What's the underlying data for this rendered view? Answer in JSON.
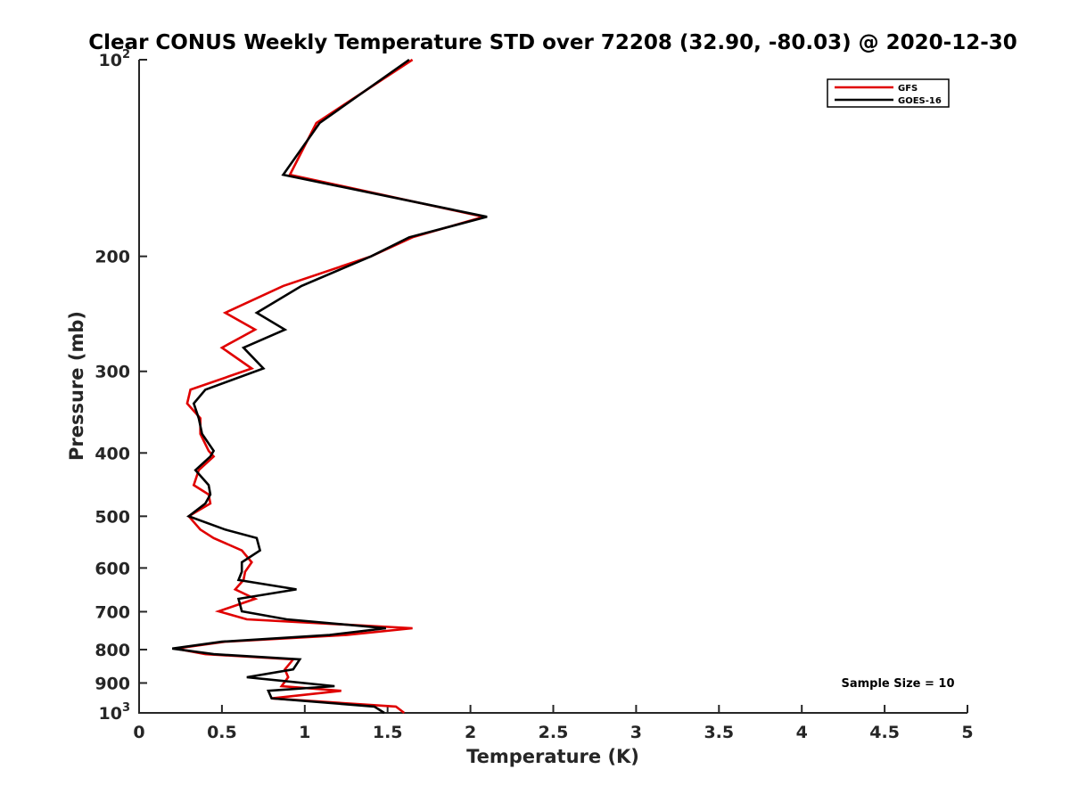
{
  "chart_data": {
    "type": "line",
    "title": "Clear CONUS Weekly Temperature STD over 72208 (32.90, -80.03) @ 2020-12-30",
    "xlabel": "Temperature (K)",
    "ylabel": "Pressure (mb)",
    "xlim": [
      0,
      5
    ],
    "ylim": [
      100,
      1000
    ],
    "yscale": "log",
    "yreversed": true,
    "grid": false,
    "legend_position": "top-right",
    "x_ticks": [
      {
        "value": 0,
        "label": "0"
      },
      {
        "value": 0.5,
        "label": "0.5"
      },
      {
        "value": 1,
        "label": "1"
      },
      {
        "value": 1.5,
        "label": "1.5"
      },
      {
        "value": 2,
        "label": "2"
      },
      {
        "value": 2.5,
        "label": "2.5"
      },
      {
        "value": 3,
        "label": "3"
      },
      {
        "value": 3.5,
        "label": "3.5"
      },
      {
        "value": 4,
        "label": "4"
      },
      {
        "value": 4.5,
        "label": "4.5"
      },
      {
        "value": 5,
        "label": "5"
      }
    ],
    "y_ticks": [
      {
        "value": 100,
        "label": "10",
        "sup": "2"
      },
      {
        "value": 200,
        "label": "200",
        "sup": ""
      },
      {
        "value": 300,
        "label": "300",
        "sup": ""
      },
      {
        "value": 400,
        "label": "400",
        "sup": ""
      },
      {
        "value": 500,
        "label": "500",
        "sup": ""
      },
      {
        "value": 600,
        "label": "600",
        "sup": ""
      },
      {
        "value": 700,
        "label": "700",
        "sup": ""
      },
      {
        "value": 800,
        "label": "800",
        "sup": ""
      },
      {
        "value": 900,
        "label": "900",
        "sup": ""
      },
      {
        "value": 1000,
        "label": "10",
        "sup": "3"
      }
    ],
    "annotation": "Sample Size = 10",
    "series": [
      {
        "name": "GFS",
        "color": "#e00000",
        "points": [
          [
            1.65,
            100
          ],
          [
            1.07,
            125
          ],
          [
            0.91,
            150
          ],
          [
            2.08,
            174
          ],
          [
            1.65,
            187
          ],
          [
            1.4,
            200
          ],
          [
            0.87,
            222
          ],
          [
            0.52,
            244
          ],
          [
            0.7,
            259
          ],
          [
            0.5,
            276
          ],
          [
            0.68,
            297
          ],
          [
            0.31,
            320
          ],
          [
            0.29,
            336
          ],
          [
            0.37,
            354
          ],
          [
            0.37,
            374
          ],
          [
            0.42,
            397
          ],
          [
            0.45,
            405
          ],
          [
            0.36,
            425
          ],
          [
            0.33,
            448
          ],
          [
            0.42,
            463
          ],
          [
            0.43,
            478
          ],
          [
            0.3,
            500
          ],
          [
            0.37,
            524
          ],
          [
            0.45,
            540
          ],
          [
            0.62,
            564
          ],
          [
            0.68,
            588
          ],
          [
            0.64,
            608
          ],
          [
            0.63,
            626
          ],
          [
            0.58,
            647
          ],
          [
            0.7,
            669
          ],
          [
            0.48,
            699
          ],
          [
            0.65,
            719
          ],
          [
            1.65,
            742
          ],
          [
            1.25,
            760
          ],
          [
            0.52,
            778
          ],
          [
            0.22,
            797
          ],
          [
            0.4,
            813
          ],
          [
            0.93,
            828
          ],
          [
            0.88,
            858
          ],
          [
            0.9,
            882
          ],
          [
            0.86,
            910
          ],
          [
            1.22,
            925
          ],
          [
            0.8,
            950
          ],
          [
            1.55,
            978
          ],
          [
            1.6,
            1000
          ]
        ]
      },
      {
        "name": "GOES-16",
        "color": "#000000",
        "points": [
          [
            1.63,
            100
          ],
          [
            1.09,
            125
          ],
          [
            0.87,
            150
          ],
          [
            2.1,
            174
          ],
          [
            1.63,
            187
          ],
          [
            1.4,
            200
          ],
          [
            0.98,
            222
          ],
          [
            0.71,
            244
          ],
          [
            0.88,
            259
          ],
          [
            0.63,
            276
          ],
          [
            0.75,
            297
          ],
          [
            0.4,
            320
          ],
          [
            0.33,
            336
          ],
          [
            0.36,
            354
          ],
          [
            0.38,
            374
          ],
          [
            0.45,
            397
          ],
          [
            0.43,
            405
          ],
          [
            0.34,
            425
          ],
          [
            0.42,
            448
          ],
          [
            0.43,
            463
          ],
          [
            0.4,
            478
          ],
          [
            0.3,
            500
          ],
          [
            0.52,
            524
          ],
          [
            0.71,
            540
          ],
          [
            0.73,
            564
          ],
          [
            0.62,
            588
          ],
          [
            0.62,
            608
          ],
          [
            0.6,
            626
          ],
          [
            0.95,
            647
          ],
          [
            0.6,
            669
          ],
          [
            0.62,
            699
          ],
          [
            0.89,
            719
          ],
          [
            1.49,
            742
          ],
          [
            1.15,
            760
          ],
          [
            0.5,
            778
          ],
          [
            0.2,
            797
          ],
          [
            0.45,
            813
          ],
          [
            0.97,
            828
          ],
          [
            0.93,
            858
          ],
          [
            0.65,
            882
          ],
          [
            1.18,
            910
          ],
          [
            0.78,
            925
          ],
          [
            0.8,
            950
          ],
          [
            1.42,
            978
          ],
          [
            1.48,
            1000
          ]
        ]
      }
    ]
  }
}
